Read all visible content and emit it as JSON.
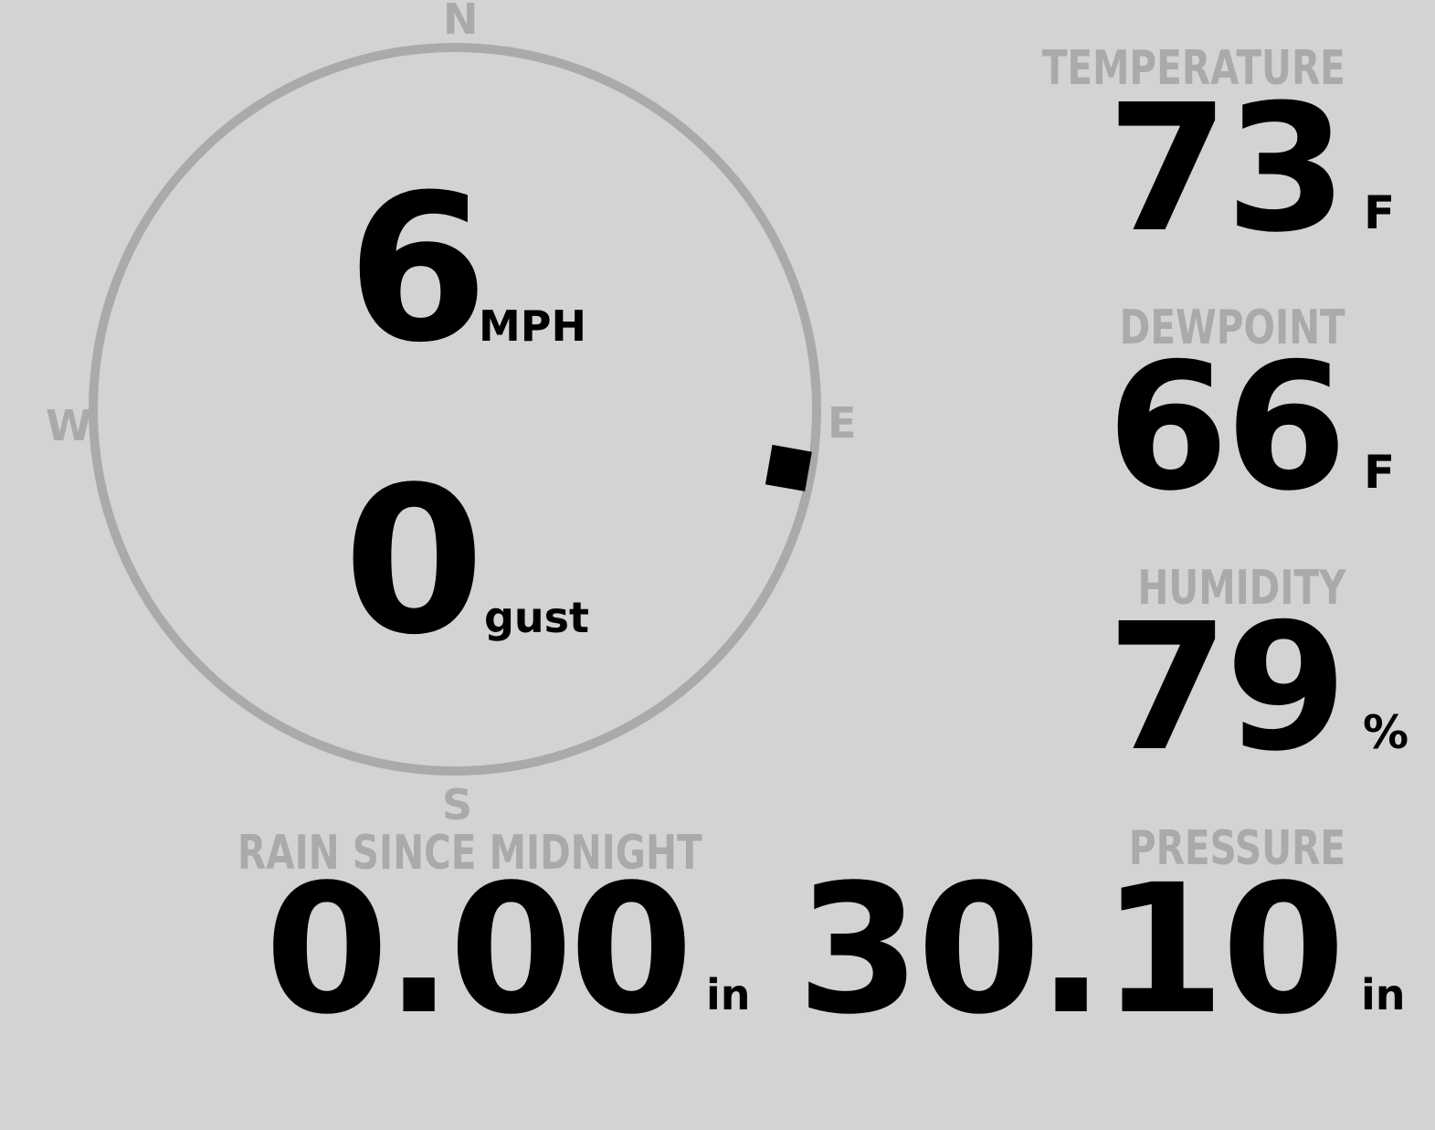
{
  "colors": {
    "background": "#d3d3d3",
    "label": "#aaaaaa",
    "value": "#000000"
  },
  "wind": {
    "compass": {
      "n": "N",
      "e": "E",
      "s": "S",
      "w": "W"
    },
    "direction_deg": 100,
    "speed": "6",
    "speed_unit": "MPH",
    "gust": "0",
    "gust_unit": "gust"
  },
  "temperature": {
    "label": "TEMPERATURE",
    "value": "73",
    "unit": "F"
  },
  "dewpoint": {
    "label": "DEWPOINT",
    "value": "66",
    "unit": "F"
  },
  "humidity": {
    "label": "HUMIDITY",
    "value": "79",
    "unit": "%"
  },
  "rain": {
    "label": "RAIN SINCE MIDNIGHT",
    "value": "0.00",
    "unit": "in"
  },
  "pressure": {
    "label": "PRESSURE",
    "value": "30.10",
    "unit": "in"
  }
}
